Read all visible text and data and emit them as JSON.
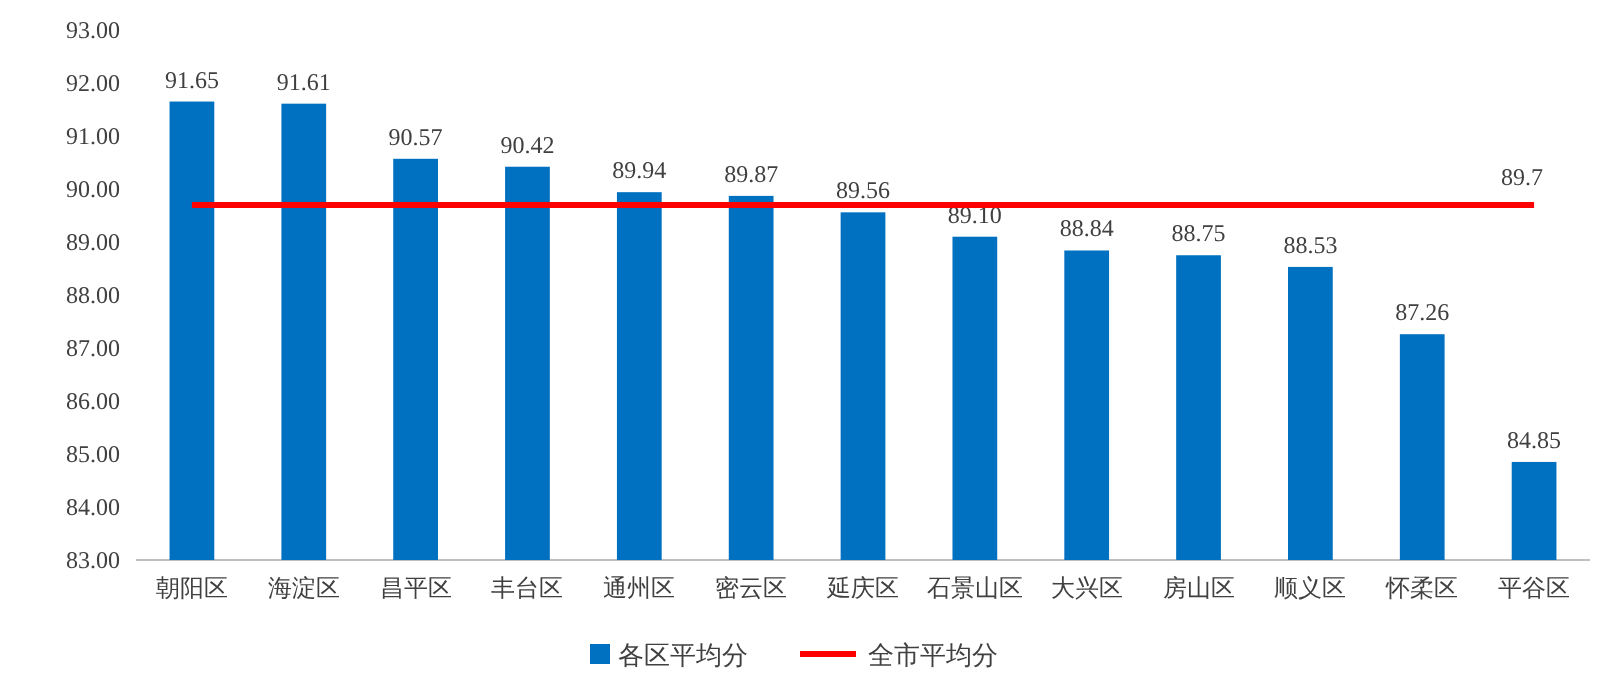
{
  "chart_data": {
    "type": "bar",
    "categories": [
      "朝阳区",
      "海淀区",
      "昌平区",
      "丰台区",
      "通州区",
      "密云区",
      "延庆区",
      "石景山区",
      "大兴区",
      "房山区",
      "顺义区",
      "怀柔区",
      "平谷区"
    ],
    "ylim": [
      83,
      93
    ],
    "yticks": [
      {
        "value": 83,
        "label": "83.00"
      },
      {
        "value": 84,
        "label": "84.00"
      },
      {
        "value": 85,
        "label": "85.00"
      },
      {
        "value": 86,
        "label": "86.00"
      },
      {
        "value": 87,
        "label": "87.00"
      },
      {
        "value": 88,
        "label": "88.00"
      },
      {
        "value": 89,
        "label": "89.00"
      },
      {
        "value": 90,
        "label": "90.00"
      },
      {
        "value": 91,
        "label": "91.00"
      },
      {
        "value": 92,
        "label": "92.00"
      },
      {
        "value": 93,
        "label": "93.00"
      }
    ],
    "legend": "bottom",
    "grid": false,
    "series": [
      {
        "name": "各区平均分",
        "color": "#0070c0",
        "values": [
          91.65,
          91.61,
          90.57,
          90.42,
          89.94,
          89.87,
          89.56,
          89.1,
          88.84,
          88.75,
          88.53,
          87.26,
          84.85
        ],
        "value_labels": [
          "91.65",
          "91.61",
          "90.57",
          "90.42",
          "89.94",
          "89.87",
          "89.56",
          "89.10",
          "88.84",
          "88.75",
          "88.53",
          "87.26",
          "84.85"
        ]
      },
      {
        "name": "全市平均分",
        "type": "line",
        "color": "#ff0000",
        "values": [
          89.7,
          89.7,
          89.7,
          89.7,
          89.7,
          89.7,
          89.7,
          89.7,
          89.7,
          89.7,
          89.7,
          89.7,
          89.7
        ],
        "value_labels": [
          null,
          null,
          null,
          null,
          null,
          null,
          null,
          null,
          null,
          null,
          null,
          null,
          "89.7"
        ]
      }
    ]
  }
}
